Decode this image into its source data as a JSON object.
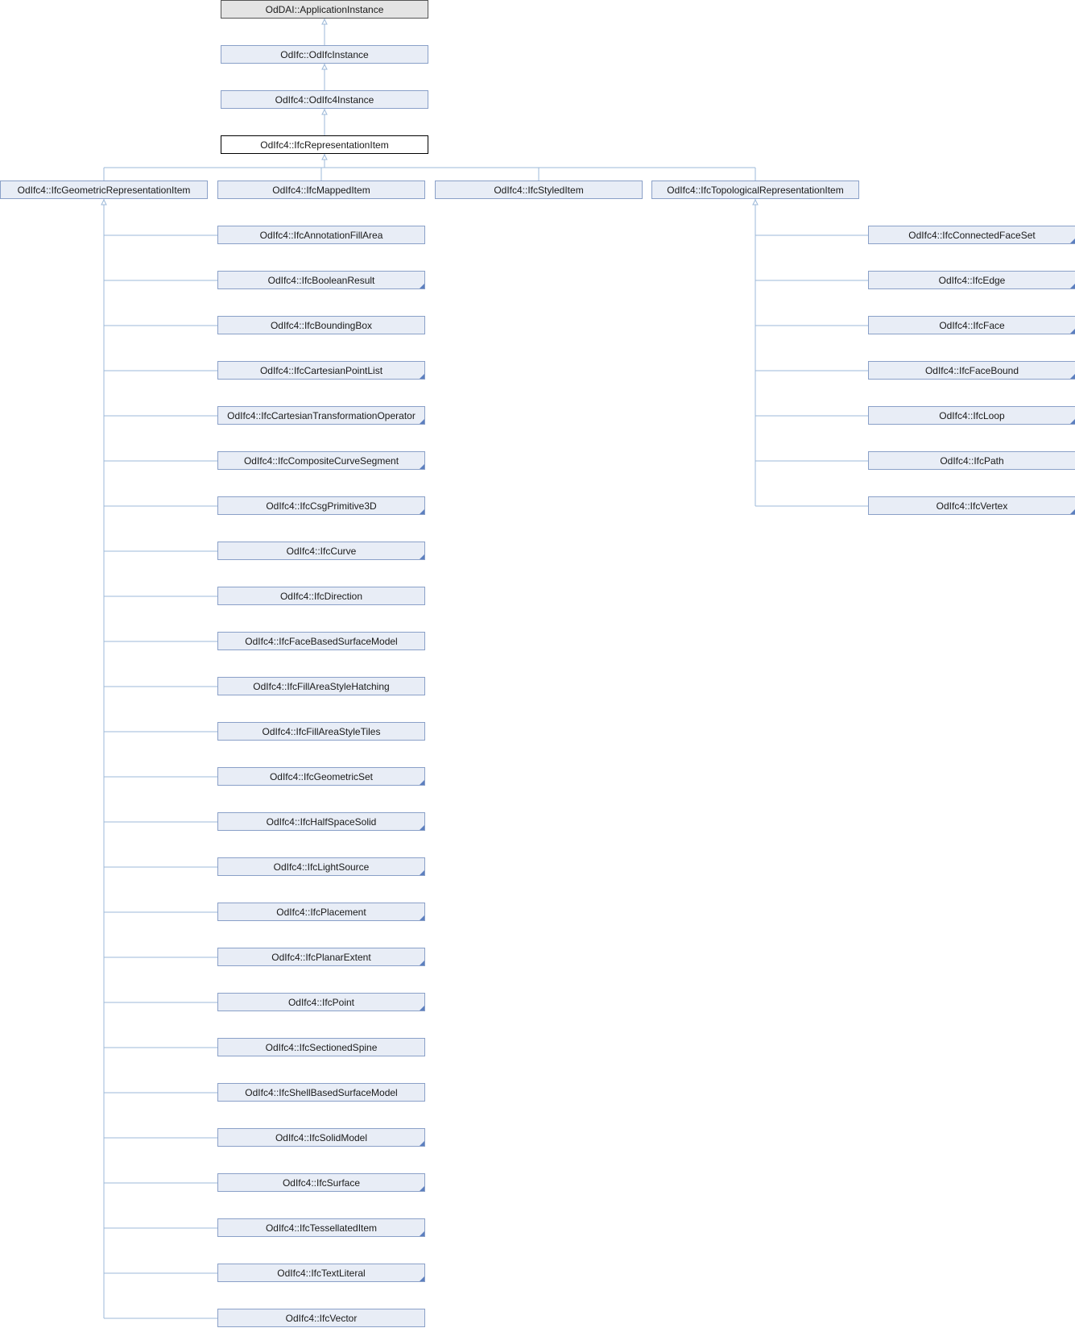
{
  "colors": {
    "edge": "#9cb8d8",
    "node_fill": "#e8edf6",
    "node_border": "#8aa0c8",
    "current_fill": "#ffffff",
    "root_fill": "#e4e4e4"
  },
  "ancestors": [
    {
      "label": "OdDAI::ApplicationInstance",
      "kind": "root"
    },
    {
      "label": "OdIfc::OdIfcInstance",
      "kind": "normal"
    },
    {
      "label": "OdIfc4::OdIfc4Instance",
      "kind": "normal"
    }
  ],
  "current": {
    "label": "OdIfc4::IfcRepresentationItem"
  },
  "children": [
    {
      "label": "OdIfc4::IfcGeometricRepresentationItem",
      "has_more": false
    },
    {
      "label": "OdIfc4::IfcMappedItem",
      "has_more": false
    },
    {
      "label": "OdIfc4::IfcStyledItem",
      "has_more": false
    },
    {
      "label": "OdIfc4::IfcTopologicalRepresentationItem",
      "has_more": false
    }
  ],
  "geometric_subclasses": [
    {
      "label": "OdIfc4::IfcAnnotationFillArea",
      "has_more": false
    },
    {
      "label": "OdIfc4::IfcBooleanResult",
      "has_more": true
    },
    {
      "label": "OdIfc4::IfcBoundingBox",
      "has_more": false
    },
    {
      "label": "OdIfc4::IfcCartesianPointList",
      "has_more": true
    },
    {
      "label": "OdIfc4::IfcCartesianTransformationOperator",
      "has_more": true
    },
    {
      "label": "OdIfc4::IfcCompositeCurveSegment",
      "has_more": true
    },
    {
      "label": "OdIfc4::IfcCsgPrimitive3D",
      "has_more": true
    },
    {
      "label": "OdIfc4::IfcCurve",
      "has_more": true
    },
    {
      "label": "OdIfc4::IfcDirection",
      "has_more": false
    },
    {
      "label": "OdIfc4::IfcFaceBasedSurfaceModel",
      "has_more": false
    },
    {
      "label": "OdIfc4::IfcFillAreaStyleHatching",
      "has_more": false
    },
    {
      "label": "OdIfc4::IfcFillAreaStyleTiles",
      "has_more": false
    },
    {
      "label": "OdIfc4::IfcGeometricSet",
      "has_more": true
    },
    {
      "label": "OdIfc4::IfcHalfSpaceSolid",
      "has_more": true
    },
    {
      "label": "OdIfc4::IfcLightSource",
      "has_more": true
    },
    {
      "label": "OdIfc4::IfcPlacement",
      "has_more": true
    },
    {
      "label": "OdIfc4::IfcPlanarExtent",
      "has_more": true
    },
    {
      "label": "OdIfc4::IfcPoint",
      "has_more": true
    },
    {
      "label": "OdIfc4::IfcSectionedSpine",
      "has_more": false
    },
    {
      "label": "OdIfc4::IfcShellBasedSurfaceModel",
      "has_more": false
    },
    {
      "label": "OdIfc4::IfcSolidModel",
      "has_more": true
    },
    {
      "label": "OdIfc4::IfcSurface",
      "has_more": true
    },
    {
      "label": "OdIfc4::IfcTessellatedItem",
      "has_more": true
    },
    {
      "label": "OdIfc4::IfcTextLiteral",
      "has_more": true
    },
    {
      "label": "OdIfc4::IfcVector",
      "has_more": false
    }
  ],
  "topological_subclasses": [
    {
      "label": "OdIfc4::IfcConnectedFaceSet",
      "has_more": true
    },
    {
      "label": "OdIfc4::IfcEdge",
      "has_more": true
    },
    {
      "label": "OdIfc4::IfcFace",
      "has_more": true
    },
    {
      "label": "OdIfc4::IfcFaceBound",
      "has_more": true
    },
    {
      "label": "OdIfc4::IfcLoop",
      "has_more": true
    },
    {
      "label": "OdIfc4::IfcPath",
      "has_more": false
    },
    {
      "label": "OdIfc4::IfcVertex",
      "has_more": true
    }
  ]
}
